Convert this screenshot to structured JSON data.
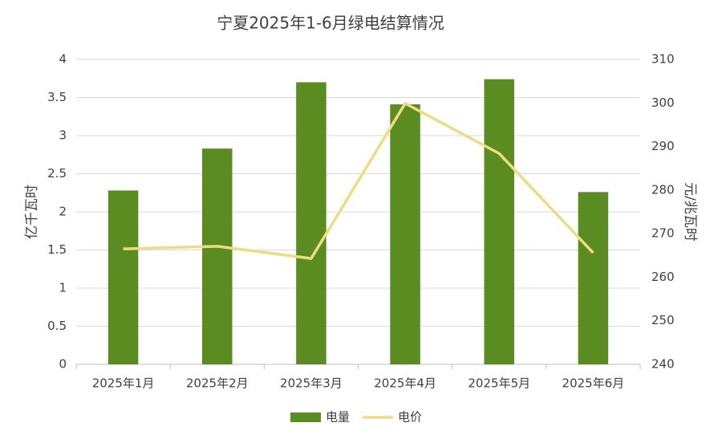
{
  "chart_data": {
    "type": "bar_line",
    "title": "宁夏2025年1-6月绿电结算情况",
    "categories": [
      "2025年1月",
      "2025年2月",
      "2025年3月",
      "2025年4月",
      "2025年5月",
      "2025年6月"
    ],
    "series": [
      {
        "name": "电量",
        "type": "bar",
        "color": "#5b8c22",
        "values": [
          2.28,
          2.83,
          3.7,
          3.41,
          3.74,
          2.26
        ]
      },
      {
        "name": "电价",
        "type": "line",
        "axis": "y2",
        "color": "#efdb80",
        "values": [
          266.5,
          267.1,
          264.3,
          299.9,
          288.4,
          265.6
        ]
      }
    ],
    "ylabel": "亿千瓦时",
    "y2label": "元/兆瓦时",
    "ylim": [
      0,
      4
    ],
    "yticks": [
      0,
      0.5,
      1,
      1.5,
      2,
      2.5,
      3,
      3.5,
      4
    ],
    "y2lim": [
      240,
      310
    ],
    "y2ticks": [
      240,
      250,
      260,
      270,
      280,
      290,
      300,
      310
    ],
    "grid": true,
    "legend": "bottom"
  }
}
